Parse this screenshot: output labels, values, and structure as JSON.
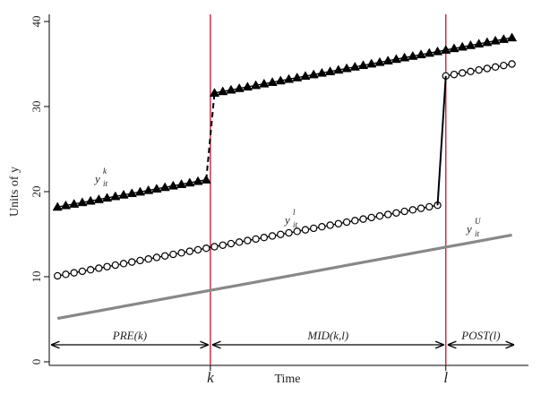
{
  "chart_data": {
    "type": "line",
    "title": "",
    "xlabel": "Time",
    "ylabel": "Units of y",
    "ylim": [
      0,
      40
    ],
    "xlim": [
      0,
      58
    ],
    "yticks": [
      0,
      10,
      20,
      30,
      40
    ],
    "grid": false,
    "events": [
      {
        "label": "k",
        "x": 19.5,
        "color": "#c8243e"
      },
      {
        "label": "l",
        "x": 48.0,
        "color": "#c8243e"
      }
    ],
    "periods": [
      {
        "label": "PRE(k)",
        "x_start": 0,
        "x_end": 19.5
      },
      {
        "label": "MID(k,l)",
        "x_start": 19.5,
        "x_end": 48.0
      },
      {
        "label": "POST(l)",
        "x_start": 48.0,
        "x_end": 56.5
      }
    ],
    "series": [
      {
        "label": "y",
        "superscript": "k",
        "subscript": "it",
        "marker": "triangle",
        "color": "#000000",
        "segments": [
          {
            "x_start": 1,
            "x_end": 19,
            "y_start": 18.2,
            "y_end": 21.4
          },
          {
            "x_start": 20,
            "x_end": 56,
            "y_start": 31.6,
            "y_end": 38.1
          }
        ],
        "jump": {
          "from": [
            19,
            21.4
          ],
          "to": [
            20,
            31.6
          ],
          "style": "dashed"
        }
      },
      {
        "label": "y",
        "superscript": "l",
        "subscript": "it",
        "marker": "circle",
        "color": "#000000",
        "segments": [
          {
            "x_start": 1,
            "x_end": 47,
            "y_start": 10.1,
            "y_end": 18.4
          },
          {
            "x_start": 48,
            "x_end": 56,
            "y_start": 33.6,
            "y_end": 35.0
          }
        ],
        "jump": {
          "from": [
            47,
            18.4
          ],
          "to": [
            48,
            33.6
          ],
          "style": "solid"
        }
      },
      {
        "label": "y",
        "superscript": "U",
        "subscript": "it",
        "marker": "none",
        "color": "#888888",
        "segments": [
          {
            "x_start": 1,
            "x_end": 56,
            "y_start": 5.1,
            "y_end": 14.9
          }
        ]
      }
    ]
  }
}
